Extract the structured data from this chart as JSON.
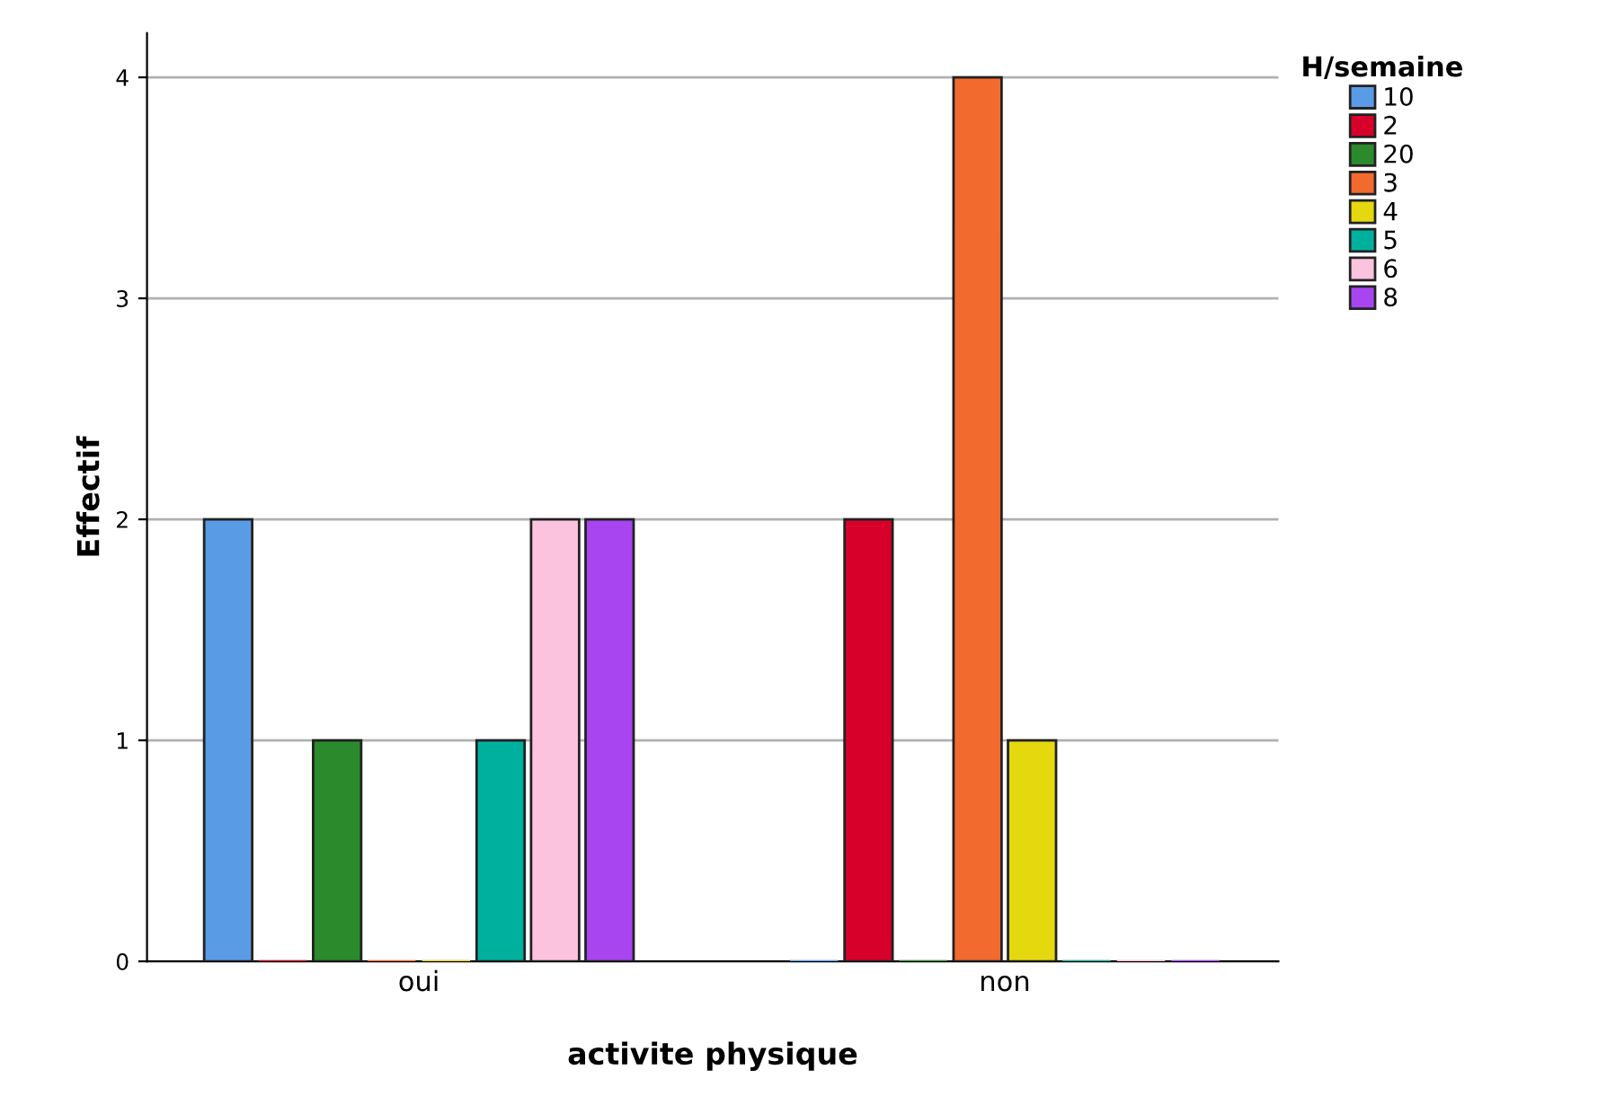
{
  "chart_data": {
    "type": "bar",
    "xlabel": "activite physique",
    "ylabel": "Effectif",
    "legend_title": "H/semaine",
    "categories": [
      "oui",
      "non"
    ],
    "series": [
      {
        "name": "10",
        "color": "#5a9be6",
        "values": [
          2,
          0
        ]
      },
      {
        "name": "2",
        "color": "#d6002b",
        "values": [
          0,
          2
        ]
      },
      {
        "name": "20",
        "color": "#2b8a2b",
        "values": [
          1,
          0
        ]
      },
      {
        "name": "3",
        "color": "#f26a2e",
        "values": [
          0,
          4
        ]
      },
      {
        "name": "4",
        "color": "#e5d80f",
        "values": [
          0,
          1
        ]
      },
      {
        "name": "5",
        "color": "#00b09e",
        "values": [
          1,
          0
        ]
      },
      {
        "name": "6",
        "color": "#fbc3de",
        "values": [
          2,
          0
        ]
      },
      {
        "name": "8",
        "color": "#a845f0",
        "values": [
          2,
          0
        ]
      }
    ],
    "ylim": [
      0,
      4.2
    ],
    "yticks": [
      0,
      1,
      2,
      3,
      4
    ],
    "grid": "y",
    "legend": "top right"
  }
}
